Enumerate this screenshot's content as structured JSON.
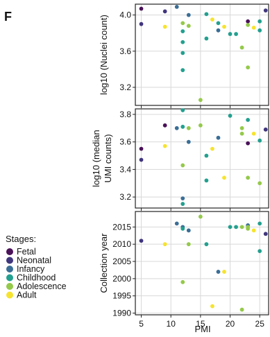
{
  "panel_label": "F",
  "colors": {
    "Fetal": "#4a1258",
    "Neonatal": "#40367d",
    "Infancy": "#3a6e96",
    "Childhood": "#23a08f",
    "Adolescence": "#94c94a",
    "Adult": "#f6e32f",
    "grid": "#d8d8d8",
    "frame": "#222222"
  },
  "legend": {
    "title": "Stages:",
    "items": [
      "Fetal",
      "Neonatal",
      "Infancy",
      "Childhood",
      "Adolescence",
      "Adult"
    ],
    "placement": "left"
  },
  "chart_data": [
    {
      "type": "scatter",
      "title": "",
      "xlabel": "PMI",
      "ylabel": "log10 (Nuclei count)",
      "xlim": [
        4,
        26.5
      ],
      "ylim": [
        3.0,
        4.12
      ],
      "xticks": [
        5,
        10,
        15,
        20,
        25
      ],
      "yticks": [
        3.2,
        3.6,
        4.0
      ],
      "ytick_labels": [
        "3.2",
        "3.6",
        "4.0"
      ],
      "grid": true,
      "points": [
        {
          "x": 5,
          "y": 4.07,
          "stage": "Fetal"
        },
        {
          "x": 5,
          "y": 3.9,
          "stage": "Neonatal"
        },
        {
          "x": 9,
          "y": 4.04,
          "stage": "Neonatal"
        },
        {
          "x": 9,
          "y": 3.87,
          "stage": "Adult"
        },
        {
          "x": 11,
          "y": 4.09,
          "stage": "Infancy"
        },
        {
          "x": 12,
          "y": 3.91,
          "stage": "Adolescence"
        },
        {
          "x": 12,
          "y": 3.7,
          "stage": "Childhood"
        },
        {
          "x": 12,
          "y": 3.58,
          "stage": "Childhood"
        },
        {
          "x": 12,
          "y": 3.39,
          "stage": "Childhood"
        },
        {
          "x": 12,
          "y": 3.82,
          "stage": "Childhood"
        },
        {
          "x": 13,
          "y": 4.0,
          "stage": "Infancy"
        },
        {
          "x": 13,
          "y": 3.88,
          "stage": "Adolescence"
        },
        {
          "x": 15,
          "y": 3.06,
          "stage": "Adolescence"
        },
        {
          "x": 16,
          "y": 4.01,
          "stage": "Childhood"
        },
        {
          "x": 16,
          "y": 3.74,
          "stage": "Childhood"
        },
        {
          "x": 17,
          "y": 3.95,
          "stage": "Adult"
        },
        {
          "x": 18,
          "y": 3.83,
          "stage": "Infancy"
        },
        {
          "x": 18,
          "y": 3.91,
          "stage": "Childhood"
        },
        {
          "x": 19,
          "y": 3.87,
          "stage": "Adult"
        },
        {
          "x": 20,
          "y": 3.79,
          "stage": "Childhood"
        },
        {
          "x": 21,
          "y": 3.79,
          "stage": "Childhood"
        },
        {
          "x": 22,
          "y": 3.64,
          "stage": "Adolescence"
        },
        {
          "x": 23,
          "y": 3.93,
          "stage": "Fetal"
        },
        {
          "x": 23,
          "y": 3.89,
          "stage": "Adolescence"
        },
        {
          "x": 23,
          "y": 3.42,
          "stage": "Adolescence"
        },
        {
          "x": 24,
          "y": 3.86,
          "stage": "Adult"
        },
        {
          "x": 25,
          "y": 3.93,
          "stage": "Childhood"
        },
        {
          "x": 25,
          "y": 3.83,
          "stage": "Childhood"
        },
        {
          "x": 26,
          "y": 4.05,
          "stage": "Neonatal"
        }
      ]
    },
    {
      "type": "scatter",
      "title": "",
      "xlabel": "PMI",
      "ylabel": "log10 (median UMI counts)",
      "xlim": [
        4,
        26.5
      ],
      "ylim": [
        3.12,
        3.84
      ],
      "xticks": [
        5,
        10,
        15,
        20,
        25
      ],
      "yticks": [
        3.2,
        3.4,
        3.6,
        3.8
      ],
      "ytick_labels": [
        "3.2",
        "3.4",
        "3.6",
        "3.8"
      ],
      "grid": true,
      "points": [
        {
          "x": 5,
          "y": 3.55,
          "stage": "Fetal"
        },
        {
          "x": 5,
          "y": 3.47,
          "stage": "Neonatal"
        },
        {
          "x": 9,
          "y": 3.72,
          "stage": "Fetal"
        },
        {
          "x": 9,
          "y": 3.57,
          "stage": "Adult"
        },
        {
          "x": 11,
          "y": 3.7,
          "stage": "Infancy"
        },
        {
          "x": 12,
          "y": 3.83,
          "stage": "Childhood"
        },
        {
          "x": 12,
          "y": 3.71,
          "stage": "Childhood"
        },
        {
          "x": 12,
          "y": 3.43,
          "stage": "Adolescence"
        },
        {
          "x": 12,
          "y": 3.19,
          "stage": "Infancy"
        },
        {
          "x": 12,
          "y": 3.15,
          "stage": "Childhood"
        },
        {
          "x": 13,
          "y": 3.7,
          "stage": "Adolescence"
        },
        {
          "x": 13,
          "y": 3.6,
          "stage": "Infancy"
        },
        {
          "x": 15,
          "y": 3.72,
          "stage": "Adolescence"
        },
        {
          "x": 16,
          "y": 3.5,
          "stage": "Childhood"
        },
        {
          "x": 16,
          "y": 3.32,
          "stage": "Childhood"
        },
        {
          "x": 17,
          "y": 3.55,
          "stage": "Adult"
        },
        {
          "x": 18,
          "y": 3.63,
          "stage": "Infancy"
        },
        {
          "x": 19,
          "y": 3.34,
          "stage": "Adult"
        },
        {
          "x": 20,
          "y": 3.79,
          "stage": "Childhood"
        },
        {
          "x": 22,
          "y": 3.7,
          "stage": "Adolescence"
        },
        {
          "x": 22,
          "y": 3.66,
          "stage": "Adolescence"
        },
        {
          "x": 23,
          "y": 3.76,
          "stage": "Childhood"
        },
        {
          "x": 23,
          "y": 3.59,
          "stage": "Fetal"
        },
        {
          "x": 23,
          "y": 3.34,
          "stage": "Adolescence"
        },
        {
          "x": 24,
          "y": 3.66,
          "stage": "Adult"
        },
        {
          "x": 25,
          "y": 3.61,
          "stage": "Childhood"
        },
        {
          "x": 25,
          "y": 3.3,
          "stage": "Adolescence"
        },
        {
          "x": 26,
          "y": 3.69,
          "stage": "Neonatal"
        }
      ]
    },
    {
      "type": "scatter",
      "title": "",
      "xlabel": "PMI",
      "ylabel": "Collection year",
      "xlim": [
        4,
        26.5
      ],
      "ylim": [
        1989.5,
        2019.5
      ],
      "xticks": [
        5,
        10,
        15,
        20,
        25
      ],
      "xtick_labels": [
        "5",
        "10",
        "15",
        "20",
        "25"
      ],
      "yticks": [
        1990,
        1995,
        2000,
        2005,
        2010,
        2015
      ],
      "ytick_labels": [
        "1990",
        "1995",
        "2000",
        "2005",
        "2010",
        "2015"
      ],
      "grid": true,
      "points": [
        {
          "x": 5,
          "y": 2011,
          "stage": "Neonatal"
        },
        {
          "x": 9,
          "y": 2010,
          "stage": "Adult"
        },
        {
          "x": 11,
          "y": 2016,
          "stage": "Infancy"
        },
        {
          "x": 12,
          "y": 2015,
          "stage": "Infancy"
        },
        {
          "x": 12,
          "y": 2014.5,
          "stage": "Childhood"
        },
        {
          "x": 12,
          "y": 1999,
          "stage": "Adolescence"
        },
        {
          "x": 13,
          "y": 2014,
          "stage": "Infancy"
        },
        {
          "x": 13,
          "y": 2010,
          "stage": "Adolescence"
        },
        {
          "x": 15,
          "y": 2018,
          "stage": "Adolescence"
        },
        {
          "x": 16,
          "y": 2010,
          "stage": "Childhood"
        },
        {
          "x": 17,
          "y": 1992,
          "stage": "Adult"
        },
        {
          "x": 18,
          "y": 2002,
          "stage": "Infancy"
        },
        {
          "x": 19,
          "y": 2002,
          "stage": "Adult"
        },
        {
          "x": 20,
          "y": 2015,
          "stage": "Childhood"
        },
        {
          "x": 21,
          "y": 2015,
          "stage": "Childhood"
        },
        {
          "x": 22,
          "y": 2015,
          "stage": "Adolescence"
        },
        {
          "x": 22,
          "y": 1991,
          "stage": "Adolescence"
        },
        {
          "x": 23,
          "y": 2015.5,
          "stage": "Infancy"
        },
        {
          "x": 23,
          "y": 2015,
          "stage": "Adolescence"
        },
        {
          "x": 23,
          "y": 2014.5,
          "stage": "Adolescence"
        },
        {
          "x": 24,
          "y": 2014,
          "stage": "Adult"
        },
        {
          "x": 25,
          "y": 2016,
          "stage": "Childhood"
        },
        {
          "x": 25,
          "y": 2008,
          "stage": "Childhood"
        },
        {
          "x": 26,
          "y": 2013,
          "stage": "Neonatal"
        }
      ]
    }
  ]
}
